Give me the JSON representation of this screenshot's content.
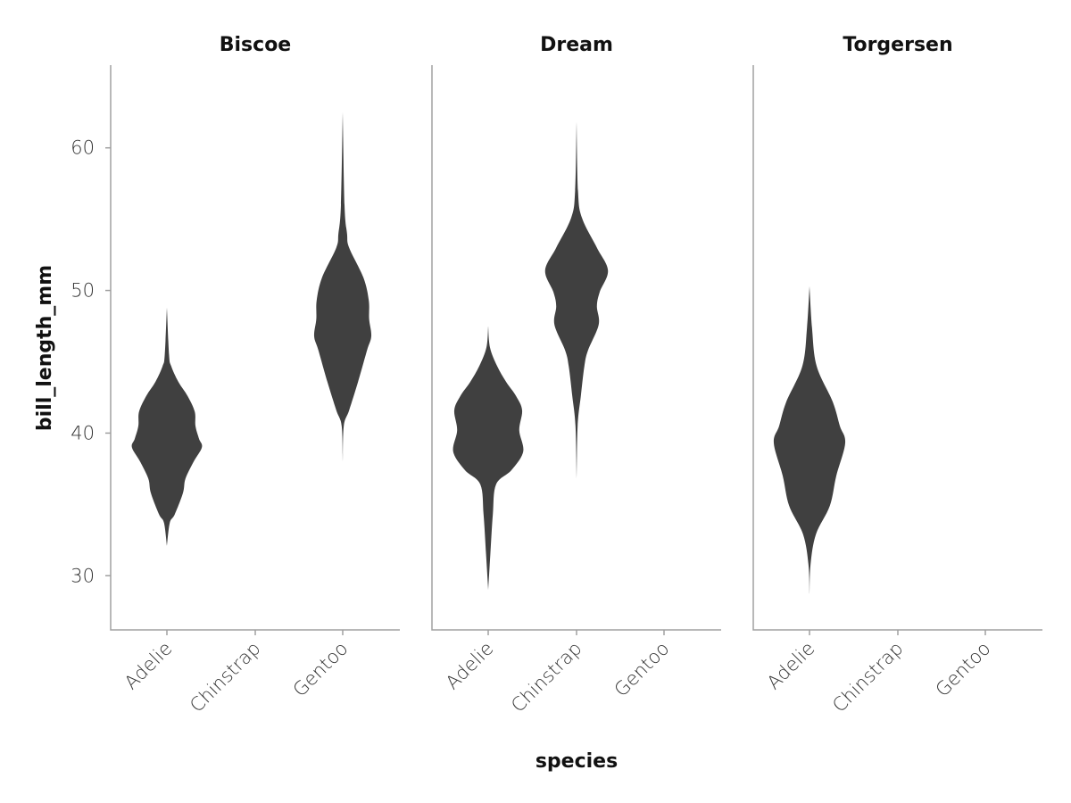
{
  "chart_data": {
    "type": "violin",
    "xlabel": "species",
    "ylabel": "bill_length_mm",
    "ylim": [
      26.2,
      65.8
    ],
    "yticks": [
      30,
      40,
      50,
      60
    ],
    "categories": [
      "Adelie",
      "Chinstrap",
      "Gentoo"
    ],
    "fill_color": "#404040",
    "axis_color": "#a0a0a0",
    "grid": false,
    "note_profile": "each violin profile = [bill_length_mm, relative density 0-1]",
    "facets": [
      {
        "title": "Biscoe",
        "violins": [
          {
            "category": "Adelie",
            "profile": [
              [
                32.1,
                0
              ],
              [
                33.7,
                0.08
              ],
              [
                34.3,
                0.22
              ],
              [
                35.8,
                0.45
              ],
              [
                36.8,
                0.52
              ],
              [
                38.0,
                0.75
              ],
              [
                39.0,
                0.98
              ],
              [
                39.6,
                0.9
              ],
              [
                40.5,
                0.8
              ],
              [
                41.5,
                0.78
              ],
              [
                42.6,
                0.58
              ],
              [
                43.6,
                0.32
              ],
              [
                44.7,
                0.12
              ],
              [
                45.5,
                0.06
              ],
              [
                48.8,
                0
              ]
            ]
          },
          {
            "category": "Gentoo",
            "profile": [
              [
                38.0,
                0
              ],
              [
                40.5,
                0.03
              ],
              [
                41.6,
                0.18
              ],
              [
                43.6,
                0.43
              ],
              [
                45.8,
                0.68
              ],
              [
                46.8,
                0.8
              ],
              [
                48.0,
                0.74
              ],
              [
                49.3,
                0.73
              ],
              [
                50.9,
                0.58
              ],
              [
                53.0,
                0.18
              ],
              [
                54.0,
                0.12
              ],
              [
                56.0,
                0.05
              ],
              [
                62.5,
                0
              ]
            ]
          }
        ]
      },
      {
        "title": "Dream",
        "violins": [
          {
            "category": "Adelie",
            "profile": [
              [
                29.0,
                0
              ],
              [
                31.5,
                0.06
              ],
              [
                34.3,
                0.13
              ],
              [
                36.4,
                0.22
              ],
              [
                37.4,
                0.65
              ],
              [
                38.7,
                0.98
              ],
              [
                40.2,
                0.87
              ],
              [
                41.6,
                0.95
              ],
              [
                42.6,
                0.78
              ],
              [
                43.6,
                0.5
              ],
              [
                44.7,
                0.25
              ],
              [
                46.0,
                0.05
              ],
              [
                47.5,
                0
              ]
            ]
          },
          {
            "category": "Chinstrap",
            "profile": [
              [
                36.8,
                0
              ],
              [
                40.5,
                0.03
              ],
              [
                42.6,
                0.12
              ],
              [
                44.7,
                0.22
              ],
              [
                45.8,
                0.32
              ],
              [
                47.6,
                0.62
              ],
              [
                48.9,
                0.57
              ],
              [
                49.9,
                0.65
              ],
              [
                51.4,
                0.88
              ],
              [
                53.0,
                0.57
              ],
              [
                55.1,
                0.15
              ],
              [
                57.0,
                0.04
              ],
              [
                61.8,
                0
              ]
            ]
          }
        ]
      },
      {
        "title": "Torgersen",
        "violins": [
          {
            "category": "Adelie",
            "profile": [
              [
                28.7,
                0
              ],
              [
                30.8,
                0.03
              ],
              [
                32.9,
                0.18
              ],
              [
                34.9,
                0.57
              ],
              [
                37.0,
                0.75
              ],
              [
                39.3,
                1.0
              ],
              [
                40.5,
                0.85
              ],
              [
                42.2,
                0.65
              ],
              [
                44.7,
                0.2
              ],
              [
                47.4,
                0.07
              ],
              [
                50.3,
                0
              ]
            ]
          }
        ]
      }
    ]
  }
}
